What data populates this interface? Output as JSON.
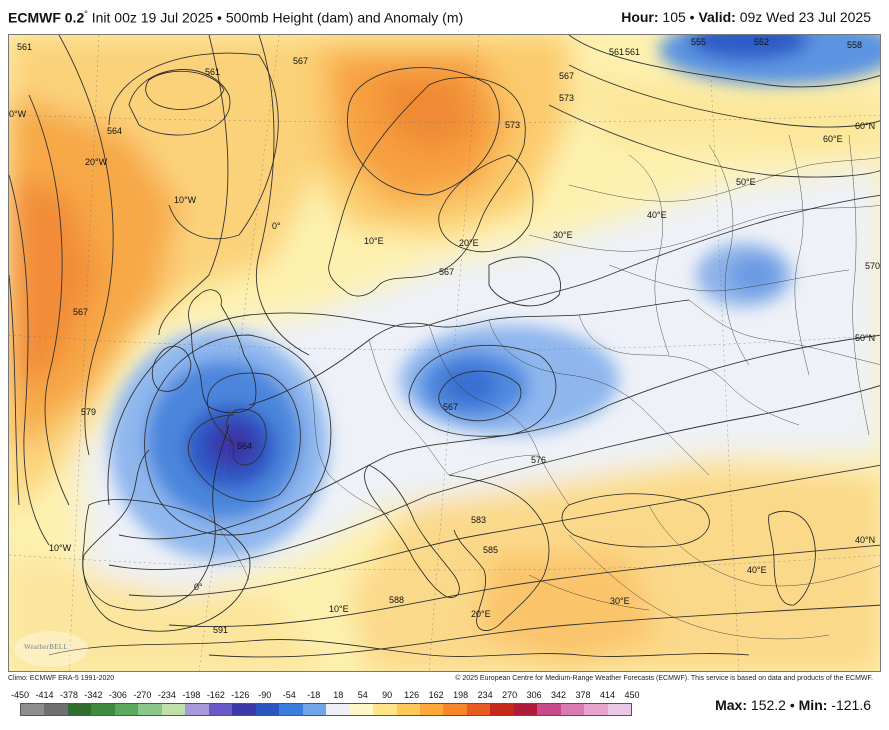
{
  "header": {
    "model": "ECMWF 0.2",
    "degree": "°",
    "init": "Init 00z 19 Jul 2025",
    "bullet": "•",
    "product": "500mb Height (dam) and Anomaly (m)",
    "hour_label": "Hour:",
    "hour_value": "105",
    "valid_label": "Valid:",
    "valid_value": "09z Wed 23 Jul 2025"
  },
  "map": {
    "contour_labels": [
      "561",
      "561",
      "567",
      "564",
      "561",
      "567",
      "573",
      "552",
      "555",
      "558",
      "561",
      "567",
      "573",
      "579",
      "567",
      "567",
      "564",
      "576",
      "583",
      "585",
      "588",
      "591",
      "570"
    ],
    "geo_labels": [
      "0°W",
      "20°W",
      "10°W",
      "0°",
      "10°E",
      "20°E",
      "30°E",
      "40°E",
      "50°E",
      "60°E",
      "60°N",
      "50°N",
      "40°N",
      "10°W",
      "0°",
      "10°E",
      "20°E",
      "30°E",
      "40°E"
    ],
    "logo_text": "WeatherBELL"
  },
  "credits": {
    "climo": "Climo: ECMWF ERA-5 1991-2020",
    "copyright": "© 2025 European Centre for Medium-Range Weather Forecasts (ECMWF). This service is based on data and products of the ECMWF."
  },
  "colorbar": {
    "ticks": [
      "-450",
      "-414",
      "-378",
      "-342",
      "-306",
      "-270",
      "-234",
      "-198",
      "-162",
      "-126",
      "-90",
      "-54",
      "-18",
      "18",
      "54",
      "90",
      "126",
      "162",
      "198",
      "234",
      "270",
      "306",
      "342",
      "378",
      "414",
      "450"
    ],
    "colors": [
      "#8e8e8e",
      "#6f6f6f",
      "#2f6e2f",
      "#3d8b3d",
      "#5aa85a",
      "#8cc68c",
      "#bfe0a8",
      "#a89ad8",
      "#6a5ac8",
      "#3b3aa8",
      "#2c55c0",
      "#3b7ddc",
      "#6fa6ea",
      "#eef0f6",
      "#fff7c8",
      "#ffe48a",
      "#ffc85a",
      "#ffa83a",
      "#f7862a",
      "#e85a20",
      "#c8281a",
      "#b01a3a",
      "#c84a8a",
      "#d97ab0",
      "#e8a4cc",
      "#e8c8e4"
    ]
  },
  "stats": {
    "max_label": "Max:",
    "max_value": "152.2",
    "bullet": "•",
    "min_label": "Min:",
    "min_value": "-121.6"
  }
}
